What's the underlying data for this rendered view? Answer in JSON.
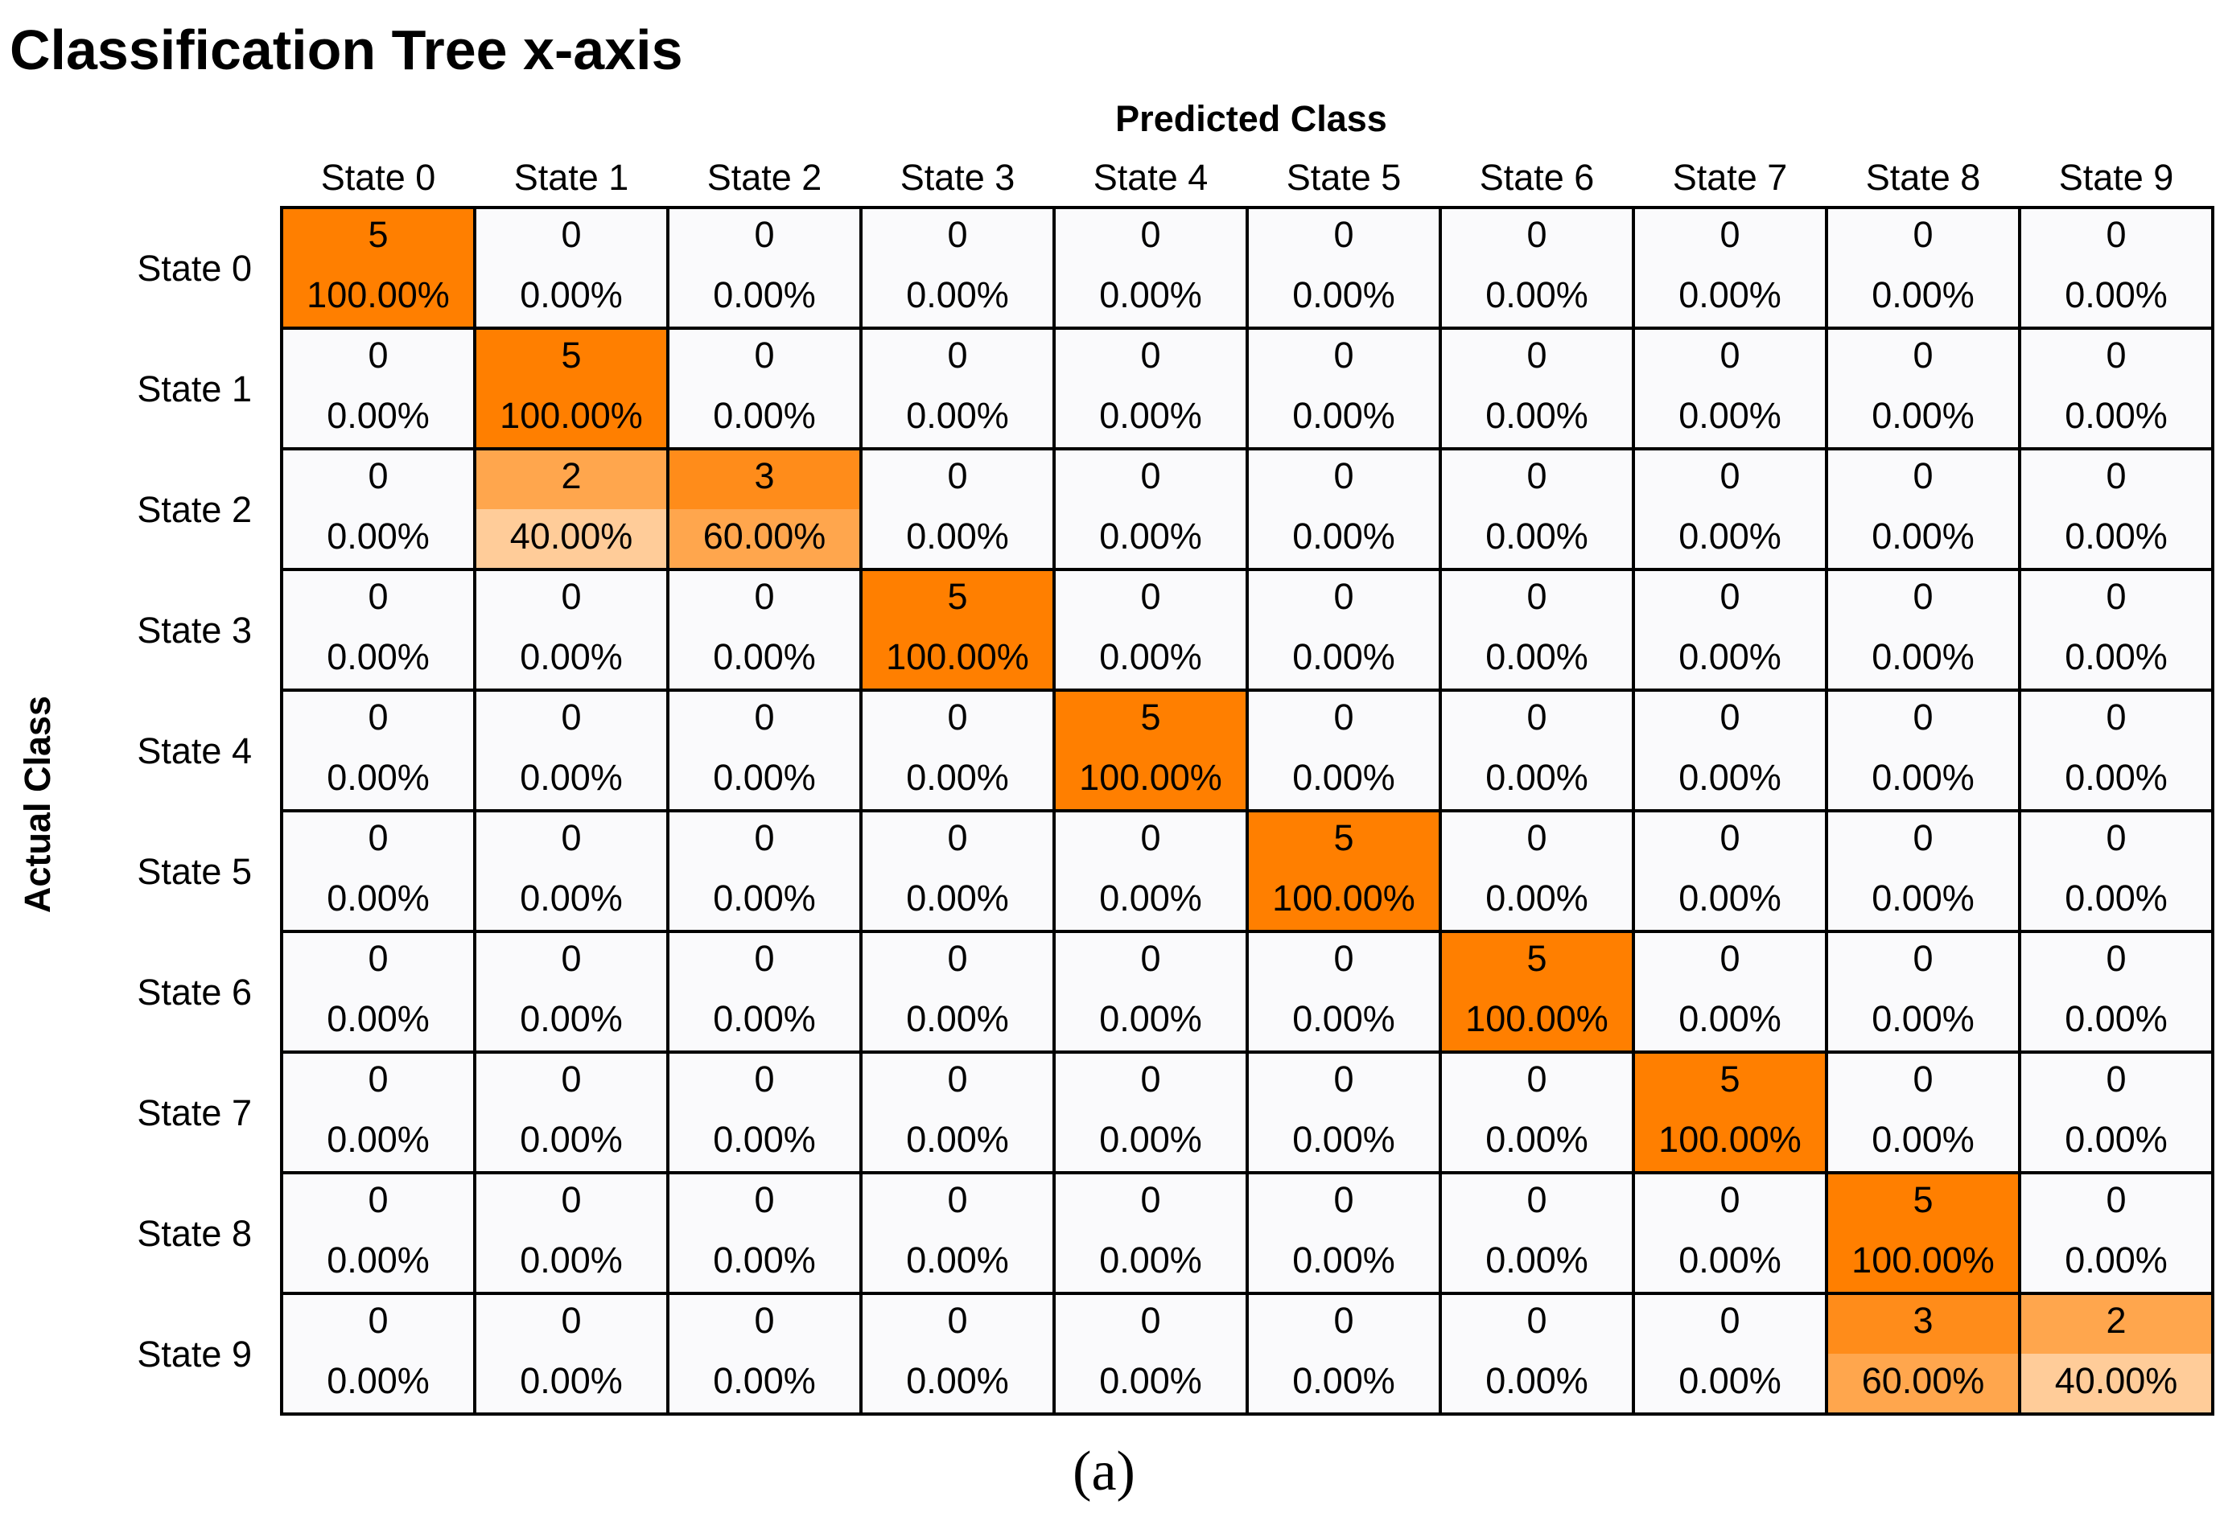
{
  "chart_data": {
    "type": "heatmap",
    "title": "Classification Tree x-axis",
    "xlabel": "Predicted Class",
    "ylabel": "Actual Class",
    "caption": "(a)",
    "x_categories": [
      "State 0",
      "State 1",
      "State 2",
      "State 3",
      "State 4",
      "State 5",
      "State 6",
      "State 7",
      "State 8",
      "State 9"
    ],
    "y_categories": [
      "State 0",
      "State 1",
      "State 2",
      "State 3",
      "State 4",
      "State 5",
      "State 6",
      "State 7",
      "State 8",
      "State 9"
    ],
    "counts": [
      [
        5,
        0,
        0,
        0,
        0,
        0,
        0,
        0,
        0,
        0
      ],
      [
        0,
        5,
        0,
        0,
        0,
        0,
        0,
        0,
        0,
        0
      ],
      [
        0,
        2,
        3,
        0,
        0,
        0,
        0,
        0,
        0,
        0
      ],
      [
        0,
        0,
        0,
        5,
        0,
        0,
        0,
        0,
        0,
        0
      ],
      [
        0,
        0,
        0,
        0,
        5,
        0,
        0,
        0,
        0,
        0
      ],
      [
        0,
        0,
        0,
        0,
        0,
        5,
        0,
        0,
        0,
        0
      ],
      [
        0,
        0,
        0,
        0,
        0,
        0,
        5,
        0,
        0,
        0
      ],
      [
        0,
        0,
        0,
        0,
        0,
        0,
        0,
        5,
        0,
        0
      ],
      [
        0,
        0,
        0,
        0,
        0,
        0,
        0,
        0,
        5,
        0
      ],
      [
        0,
        0,
        0,
        0,
        0,
        0,
        0,
        0,
        3,
        2
      ]
    ],
    "percentages": [
      [
        "100.00%",
        "0.00%",
        "0.00%",
        "0.00%",
        "0.00%",
        "0.00%",
        "0.00%",
        "0.00%",
        "0.00%",
        "0.00%"
      ],
      [
        "0.00%",
        "100.00%",
        "0.00%",
        "0.00%",
        "0.00%",
        "0.00%",
        "0.00%",
        "0.00%",
        "0.00%",
        "0.00%"
      ],
      [
        "0.00%",
        "40.00%",
        "60.00%",
        "0.00%",
        "0.00%",
        "0.00%",
        "0.00%",
        "0.00%",
        "0.00%",
        "0.00%"
      ],
      [
        "0.00%",
        "0.00%",
        "0.00%",
        "100.00%",
        "0.00%",
        "0.00%",
        "0.00%",
        "0.00%",
        "0.00%",
        "0.00%"
      ],
      [
        "0.00%",
        "0.00%",
        "0.00%",
        "0.00%",
        "100.00%",
        "0.00%",
        "0.00%",
        "0.00%",
        "0.00%",
        "0.00%"
      ],
      [
        "0.00%",
        "0.00%",
        "0.00%",
        "0.00%",
        "0.00%",
        "100.00%",
        "0.00%",
        "0.00%",
        "0.00%",
        "0.00%"
      ],
      [
        "0.00%",
        "0.00%",
        "0.00%",
        "0.00%",
        "0.00%",
        "0.00%",
        "100.00%",
        "0.00%",
        "0.00%",
        "0.00%"
      ],
      [
        "0.00%",
        "0.00%",
        "0.00%",
        "0.00%",
        "0.00%",
        "0.00%",
        "0.00%",
        "100.00%",
        "0.00%",
        "0.00%"
      ],
      [
        "0.00%",
        "0.00%",
        "0.00%",
        "0.00%",
        "0.00%",
        "0.00%",
        "0.00%",
        "0.00%",
        "100.00%",
        "0.00%"
      ],
      [
        "0.00%",
        "0.00%",
        "0.00%",
        "0.00%",
        "0.00%",
        "0.00%",
        "0.00%",
        "0.00%",
        "60.00%",
        "40.00%"
      ]
    ],
    "colors": {
      "full": "#ff7f00",
      "partial_top_high": "#ff8c1a",
      "partial_bottom_high": "#ffa64d",
      "partial_top_low": "#ffa64d",
      "partial_bottom_low": "#ffcc99",
      "zero": "#fafafc",
      "grid": "#000000"
    }
  }
}
